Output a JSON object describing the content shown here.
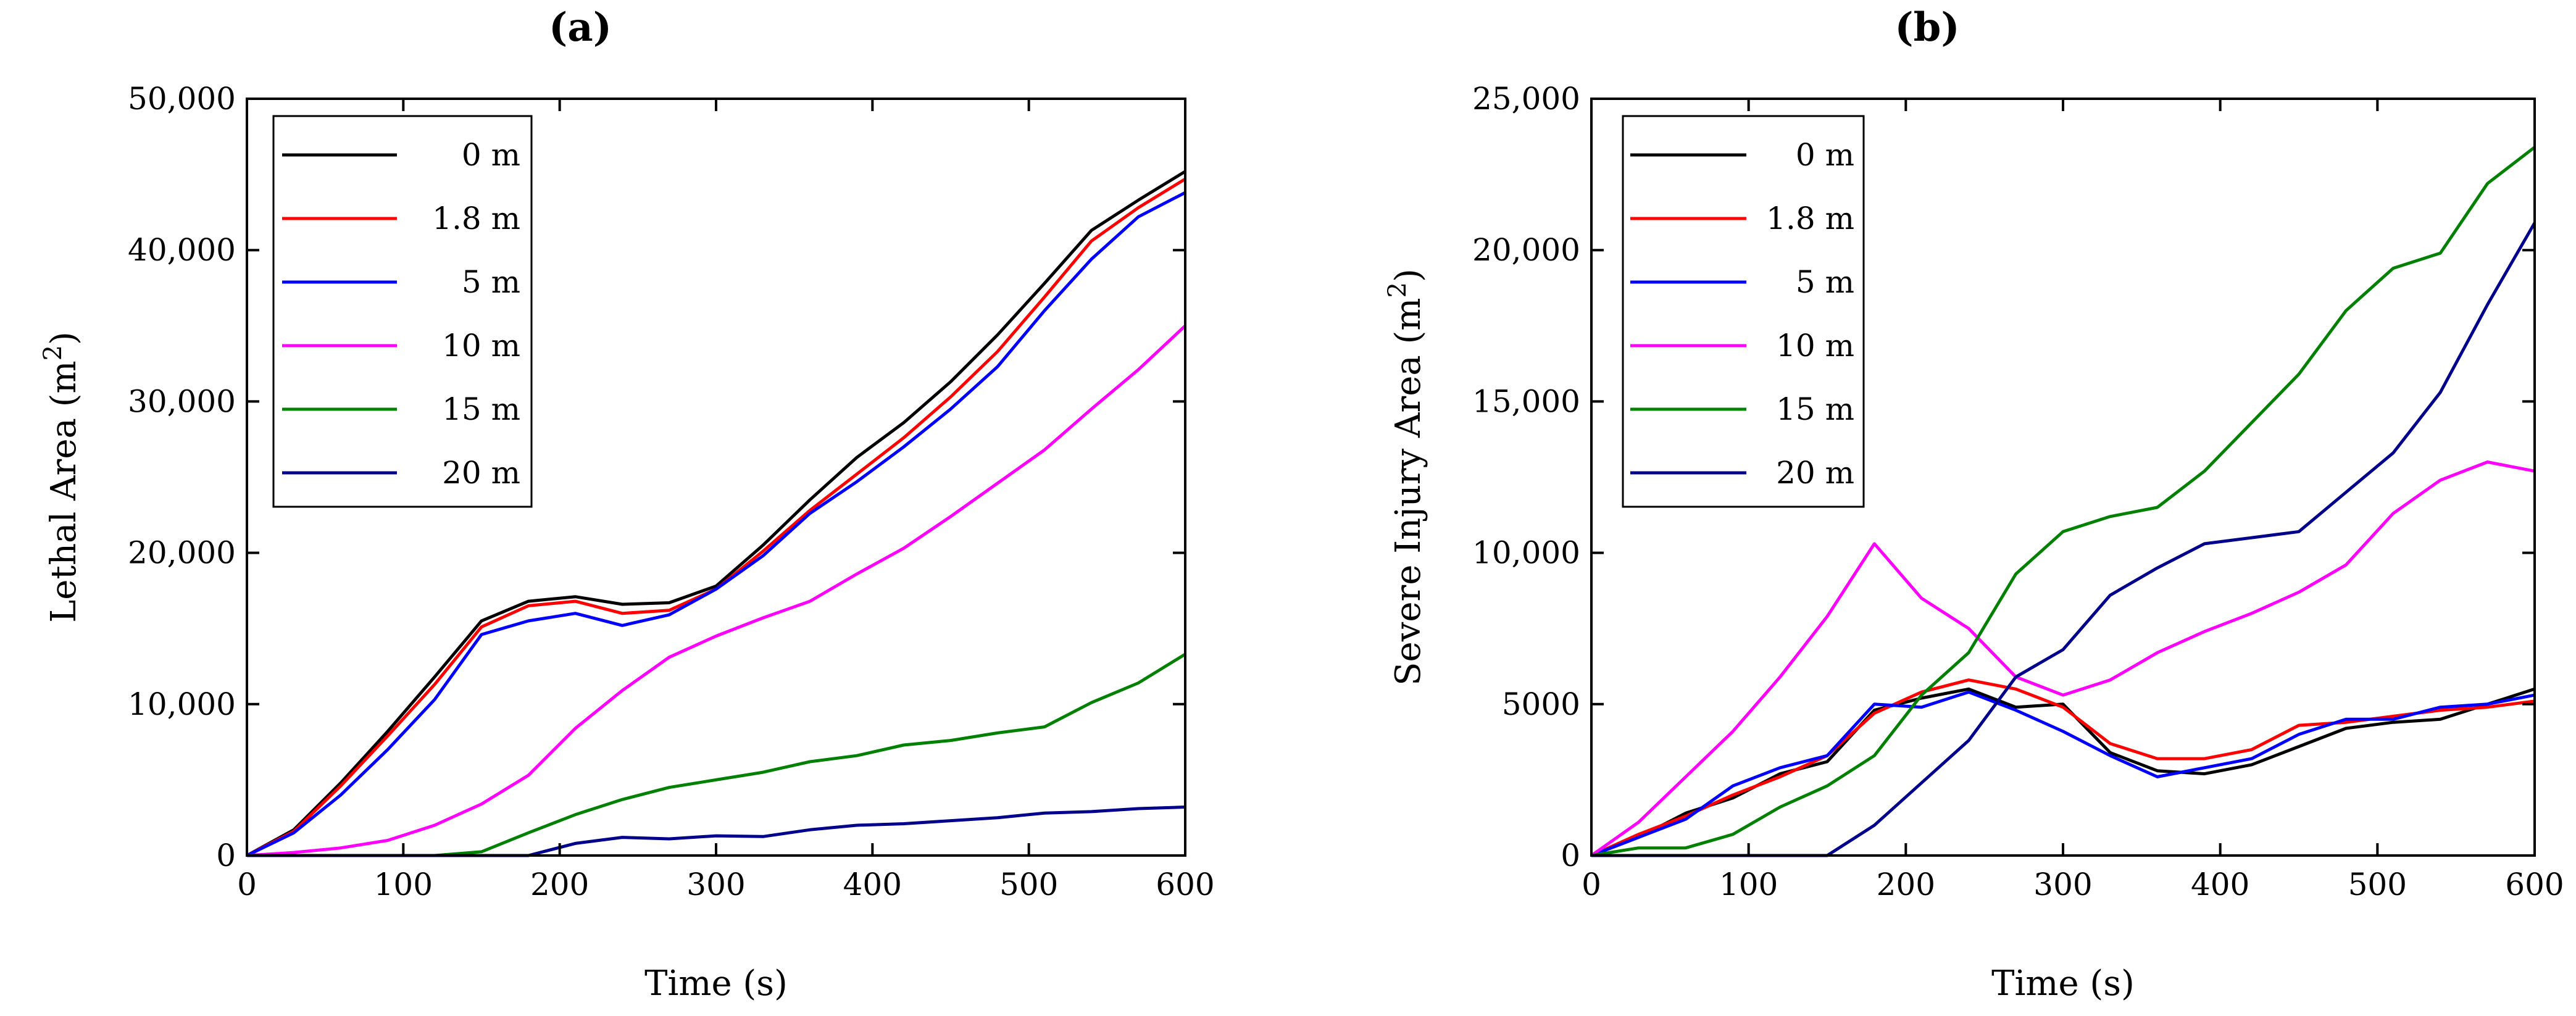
{
  "chart_data": [
    {
      "panel_label": "(a)",
      "type": "line",
      "xlabel": "Time (s)",
      "ylabel": "Lethal Area (m",
      "ylabel_sup": "2",
      "ylabel_close": ")",
      "xlim": [
        0,
        600
      ],
      "ylim": [
        0,
        50000
      ],
      "x_ticks": [
        0,
        100,
        200,
        300,
        400,
        500,
        600
      ],
      "x_tick_labels": [
        "0",
        "100",
        "200",
        "300",
        "400",
        "500",
        "600"
      ],
      "y_ticks": [
        0,
        10000,
        20000,
        30000,
        40000,
        50000
      ],
      "y_tick_labels": [
        "0",
        "10,000",
        "20,000",
        "30,000",
        "40,000",
        "50,000"
      ],
      "legend_position": "top-left",
      "x": [
        0,
        30,
        60,
        90,
        120,
        150,
        180,
        210,
        240,
        270,
        300,
        330,
        360,
        390,
        420,
        450,
        480,
        510,
        540,
        570,
        600
      ],
      "series": [
        {
          "name": "0 m",
          "color": "#000000",
          "values": [
            0,
            1700,
            4800,
            8200,
            11800,
            15500,
            16800,
            17100,
            16600,
            16700,
            17800,
            20500,
            23500,
            26300,
            28600,
            31300,
            34400,
            37800,
            41300,
            43300,
            45200
          ]
        },
        {
          "name": "1.8 m",
          "color": "#ff0000",
          "values": [
            0,
            1600,
            4600,
            7900,
            11300,
            15100,
            16500,
            16800,
            16000,
            16200,
            17600,
            20100,
            22800,
            25200,
            27600,
            30300,
            33300,
            36900,
            40600,
            42800,
            44700
          ]
        },
        {
          "name": "5 m",
          "color": "#0000ff",
          "values": [
            0,
            1500,
            4000,
            7000,
            10300,
            14600,
            15500,
            16000,
            15200,
            15900,
            17600,
            19800,
            22600,
            24700,
            27000,
            29500,
            32300,
            36000,
            39400,
            42200,
            43800
          ]
        },
        {
          "name": "10 m",
          "color": "#ff00ff",
          "values": [
            0,
            200,
            500,
            1000,
            2000,
            3400,
            5300,
            8400,
            10900,
            13100,
            14500,
            15700,
            16800,
            18600,
            20300,
            22400,
            24600,
            26800,
            29500,
            32100,
            35000
          ]
        },
        {
          "name": "15 m",
          "color": "#008000",
          "values": [
            0,
            0,
            0,
            0,
            0,
            250,
            1500,
            2700,
            3700,
            4500,
            5000,
            5500,
            6200,
            6600,
            7300,
            7600,
            8100,
            8500,
            10100,
            11400,
            13300
          ]
        },
        {
          "name": "20 m",
          "color": "#00008b",
          "values": [
            0,
            0,
            0,
            0,
            0,
            0,
            0,
            800,
            1200,
            1100,
            1300,
            1250,
            1700,
            2000,
            2100,
            2300,
            2500,
            2800,
            2900,
            3100,
            3200
          ]
        }
      ]
    },
    {
      "panel_label": "(b)",
      "type": "line",
      "xlabel": "Time (s)",
      "ylabel": "Severe Injury Area (m",
      "ylabel_sup": "2",
      "ylabel_close": ")",
      "xlim": [
        0,
        600
      ],
      "ylim": [
        0,
        25000
      ],
      "x_ticks": [
        0,
        100,
        200,
        300,
        400,
        500,
        600
      ],
      "x_tick_labels": [
        "0",
        "100",
        "200",
        "300",
        "400",
        "500",
        "600"
      ],
      "y_ticks": [
        0,
        5000,
        10000,
        15000,
        20000,
        25000
      ],
      "y_tick_labels": [
        "0",
        "5000",
        "10,000",
        "15,000",
        "20,000",
        "25,000"
      ],
      "legend_position": "top-left",
      "x": [
        0,
        30,
        60,
        90,
        120,
        150,
        180,
        210,
        240,
        270,
        300,
        330,
        360,
        390,
        420,
        450,
        480,
        510,
        540,
        570,
        600
      ],
      "series": [
        {
          "name": "0 m",
          "color": "#000000",
          "values": [
            0,
            600,
            1400,
            1900,
            2700,
            3100,
            4800,
            5200,
            5500,
            4900,
            5000,
            3400,
            2800,
            2700,
            3000,
            3600,
            4200,
            4400,
            4500,
            5000,
            5500
          ]
        },
        {
          "name": "1.8 m",
          "color": "#ff0000",
          "values": [
            0,
            700,
            1300,
            2000,
            2600,
            3300,
            4700,
            5400,
            5800,
            5500,
            4900,
            3700,
            3200,
            3200,
            3500,
            4300,
            4400,
            4600,
            4800,
            4900,
            5100
          ]
        },
        {
          "name": "5 m",
          "color": "#0000ff",
          "values": [
            0,
            600,
            1200,
            2300,
            2900,
            3300,
            5000,
            4900,
            5400,
            4800,
            4100,
            3300,
            2600,
            2900,
            3200,
            4000,
            4500,
            4500,
            4900,
            5000,
            5300
          ]
        },
        {
          "name": "10 m",
          "color": "#ff00ff",
          "values": [
            0,
            1100,
            2600,
            4100,
            5900,
            7900,
            10300,
            8500,
            7500,
            5900,
            5300,
            5800,
            6700,
            7400,
            8000,
            8700,
            9600,
            11300,
            12400,
            13000,
            12700
          ]
        },
        {
          "name": "15 m",
          "color": "#008000",
          "values": [
            0,
            250,
            250,
            700,
            1600,
            2300,
            3300,
            5300,
            6700,
            9300,
            10700,
            11200,
            11500,
            12700,
            14300,
            15900,
            18000,
            19400,
            19900,
            22200,
            23400
          ]
        },
        {
          "name": "20 m",
          "color": "#00008b",
          "values": [
            0,
            0,
            0,
            0,
            0,
            0,
            1000,
            2400,
            3800,
            5900,
            6800,
            8600,
            9500,
            10300,
            10500,
            10700,
            12000,
            13300,
            15300,
            18200,
            20900
          ]
        }
      ]
    }
  ]
}
